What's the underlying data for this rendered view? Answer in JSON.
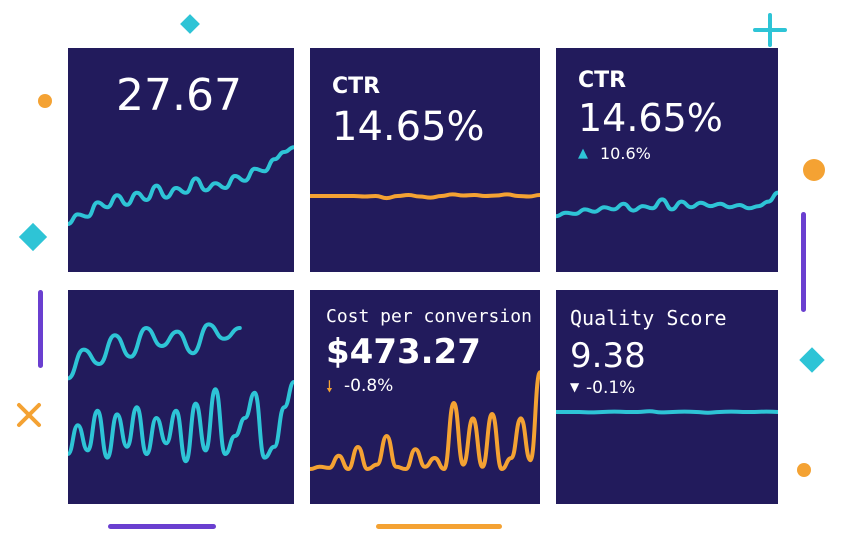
{
  "colors": {
    "background": "#ffffff",
    "card": "#221b5c",
    "teal": "#2ec4d6",
    "orange": "#f4a233",
    "purple": "#6a3fd0",
    "text": "#ffffff"
  },
  "decorations": [
    "diamond-icon",
    "plus-icon",
    "dot-icon",
    "bar-icon",
    "cross-icon"
  ],
  "chart_data": [
    {
      "type": "line",
      "panel": 1,
      "title": "",
      "value": "27.67",
      "series": [
        {
          "name": "trend",
          "color": "#2ec4d6",
          "values": [
            20,
            28,
            26,
            38,
            34,
            44,
            36,
            46,
            40,
            52,
            42,
            50,
            46,
            58,
            48,
            54,
            50,
            60,
            56,
            66,
            64,
            74,
            80,
            84
          ]
        }
      ]
    },
    {
      "type": "line",
      "panel": 2,
      "title": "CTR",
      "value": "14.65%",
      "series": [
        {
          "name": "trend",
          "color": "#f4a233",
          "values": [
            50,
            50,
            50,
            50,
            50,
            49,
            50,
            46,
            50,
            52,
            49,
            47,
            50,
            53,
            51,
            52,
            50,
            51,
            53,
            50,
            49,
            52
          ]
        }
      ]
    },
    {
      "type": "line",
      "panel": 3,
      "title": "CTR",
      "value": "14.65%",
      "delta": {
        "direction": "up",
        "text": "10.6%"
      },
      "series": [
        {
          "name": "trend",
          "color": "#2ec4d6",
          "values": [
            14,
            20,
            18,
            26,
            22,
            30,
            26,
            36,
            24,
            32,
            28,
            44,
            26,
            40,
            30,
            38,
            32,
            36,
            30,
            34,
            28,
            32,
            40,
            56
          ]
        }
      ]
    },
    {
      "type": "line",
      "panel": 4,
      "title": "",
      "value": "",
      "series": [
        {
          "name": "series-a",
          "color": "#2ec4d6",
          "values": [
            62,
            78,
            70,
            86,
            74,
            90,
            80,
            88,
            76,
            92,
            84,
            90
          ]
        },
        {
          "name": "series-b",
          "color": "#2ec4d6",
          "values": [
            20,
            36,
            22,
            44,
            18,
            42,
            24,
            46,
            20,
            40,
            26,
            44,
            16,
            48,
            22,
            56,
            20,
            30,
            40,
            54,
            18,
            24,
            46,
            60
          ]
        }
      ]
    },
    {
      "type": "line",
      "panel": 5,
      "title": "Cost per conversion",
      "value": "$473.27",
      "delta": {
        "direction": "down",
        "text": "-0.8%"
      },
      "series": [
        {
          "name": "trend",
          "color": "#f4a233",
          "values": [
            10,
            12,
            11,
            22,
            10,
            30,
            10,
            14,
            40,
            12,
            10,
            28,
            12,
            20,
            10,
            70,
            14,
            56,
            12,
            60,
            10,
            20,
            56,
            18,
            98
          ]
        }
      ]
    },
    {
      "type": "line",
      "panel": 6,
      "title": "Quality Score",
      "value": "9.38",
      "delta": {
        "direction": "down",
        "text": "-0.1%"
      },
      "series": [
        {
          "name": "trend",
          "color": "#2ec4d6",
          "values": [
            50,
            50,
            50,
            49,
            50,
            51,
            50,
            50,
            52,
            49,
            50,
            51,
            50,
            48,
            50,
            51,
            50,
            50,
            51,
            50
          ]
        }
      ]
    }
  ]
}
